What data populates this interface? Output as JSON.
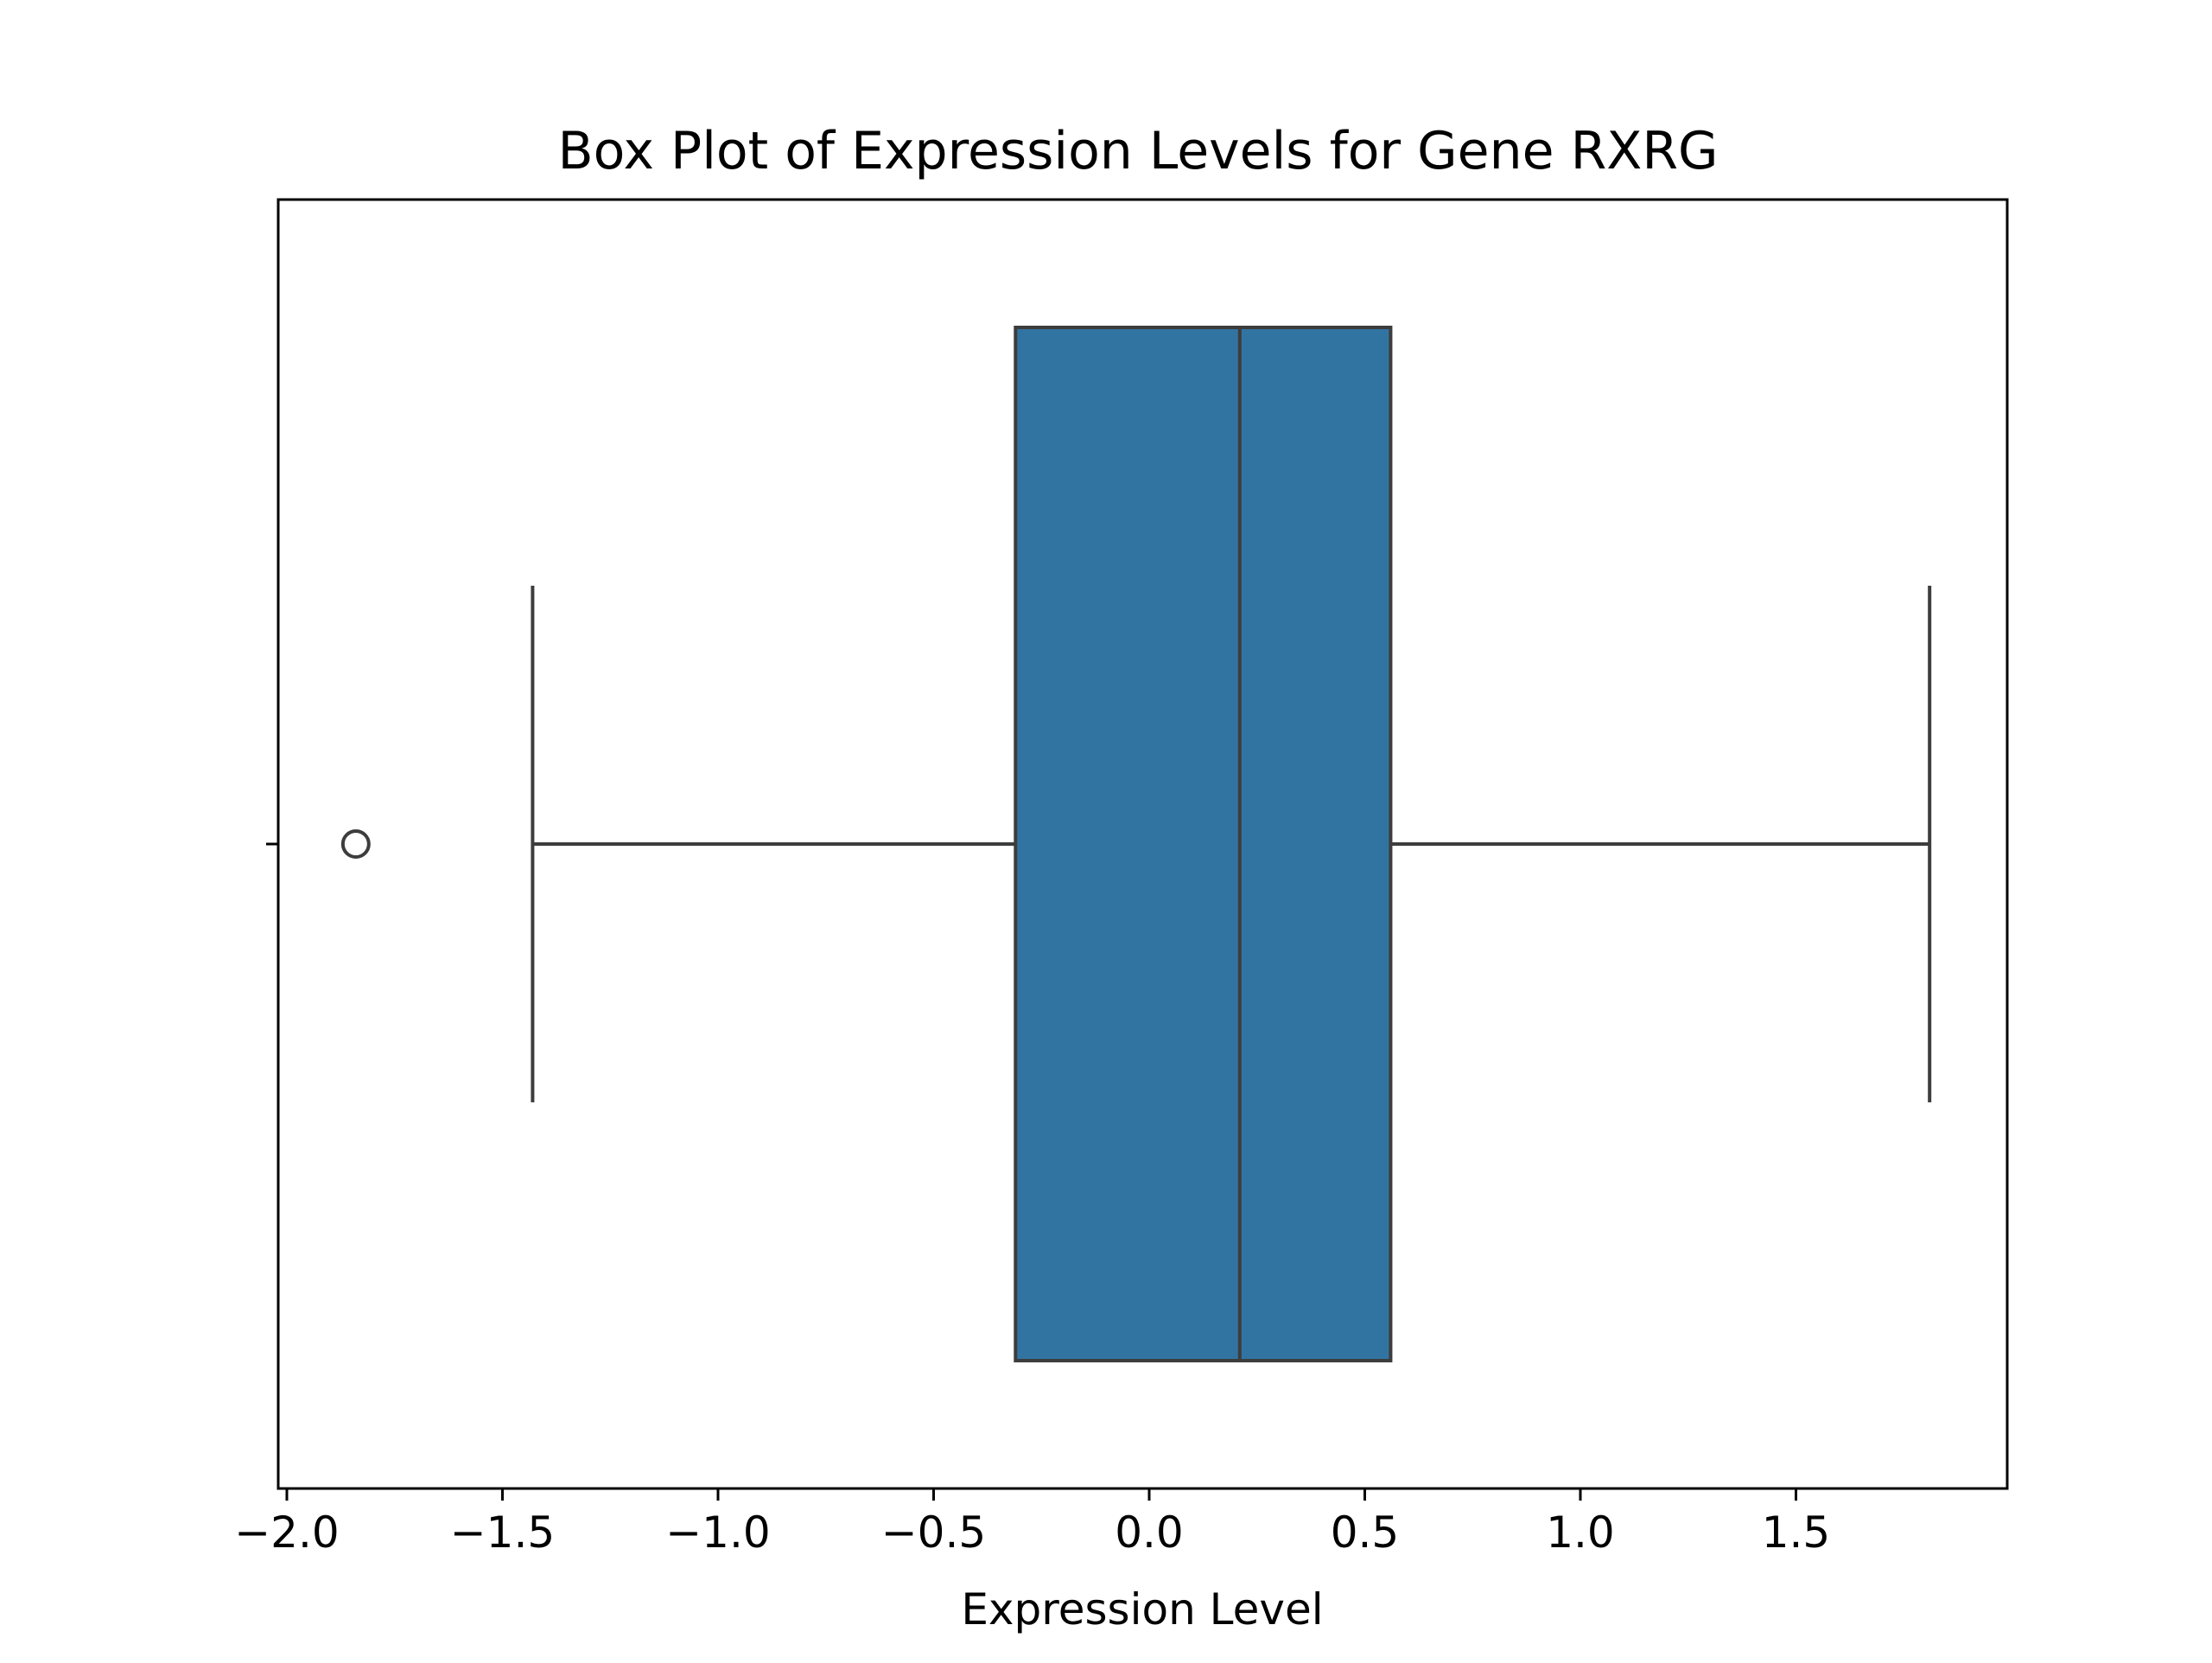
{
  "chart_data": {
    "type": "box",
    "title": "Box Plot of Expression Levels for Gene RXRG",
    "xlabel": "Expression Level",
    "ylabel": "",
    "orientation": "horizontal",
    "xlim": [
      -2.02,
      1.99
    ],
    "xticks": [
      -2.0,
      -1.5,
      -1.0,
      -0.5,
      0.0,
      0.5,
      1.0,
      1.5
    ],
    "xtick_labels": [
      "−2.0",
      "−1.5",
      "−1.0",
      "−0.5",
      "0.0",
      "0.5",
      "1.0",
      "1.5"
    ],
    "grid": false,
    "box": {
      "whisker_low": -1.43,
      "q1": -0.31,
      "median": 0.21,
      "q3": 0.56,
      "whisker_high": 1.81,
      "outliers": [
        -1.84
      ]
    },
    "colors": {
      "box_fill": "#3274a1",
      "line": "#3d3d3d",
      "axes": "#000000"
    }
  }
}
